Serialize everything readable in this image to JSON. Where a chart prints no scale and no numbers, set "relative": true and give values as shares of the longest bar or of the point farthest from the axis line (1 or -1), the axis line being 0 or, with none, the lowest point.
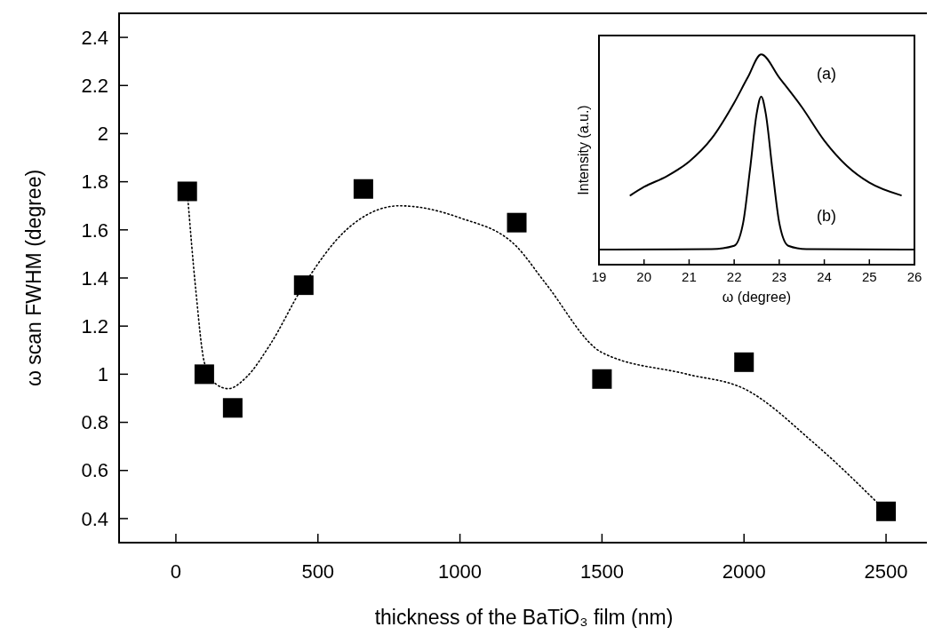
{
  "chart_data": [
    {
      "type": "scatter",
      "xlabel": "thickness of the BaTiO₃ film (nm)",
      "ylabel": "ω scan FWHM  (degree)",
      "xlim": [
        -200,
        2650
      ],
      "xticks": [
        0,
        500,
        1000,
        1500,
        2000,
        2500
      ],
      "ylim": [
        0.3,
        2.5
      ],
      "yticks": [
        0.4,
        0.6,
        0.8,
        1.0,
        1.2,
        1.4,
        1.6,
        1.8,
        2.0,
        2.2,
        2.4
      ],
      "grid": false,
      "series": [
        {
          "color": "#000000",
          "marker": "square",
          "x": [
            40,
            100,
            200,
            450,
            660,
            1200,
            1500,
            2000,
            2500
          ],
          "values": [
            1.76,
            1.0,
            0.86,
            1.37,
            1.77,
            1.63,
            0.98,
            1.05,
            0.43
          ]
        },
        {
          "type": "line",
          "color": "#000000",
          "line_style": "dotted",
          "marker": "none",
          "x": [
            40,
            70,
            100,
            140,
            184,
            250,
            330,
            450,
            600,
            787,
            1000,
            1200,
            1300,
            1500,
            1800,
            2000,
            2250,
            2500
          ],
          "values": [
            1.76,
            1.35,
            1.05,
            0.96,
            0.94,
            0.99,
            1.12,
            1.37,
            1.6,
            1.7,
            1.65,
            1.53,
            1.38,
            1.09,
            1.0,
            0.94,
            0.71,
            0.43
          ]
        }
      ]
    },
    {
      "type": "line",
      "relative": true,
      "xlabel": "ω (degree)",
      "ylabel": "Intensity (a.u.)",
      "xlim": [
        19,
        26
      ],
      "xticks": [
        19,
        20,
        21,
        22,
        23,
        24,
        25,
        26
      ],
      "grid": false,
      "annotations": [
        "(a)",
        "(b)"
      ],
      "series": [
        {
          "color": "#000000",
          "line_style": "solid",
          "x": [
            19.7,
            20,
            20.5,
            21,
            21.5,
            22,
            22.3,
            22.6,
            23,
            23.5,
            24,
            24.5,
            25,
            25.7
          ],
          "values": [
            0.33,
            0.37,
            0.42,
            0.49,
            0.6,
            0.77,
            0.89,
            1.0,
            0.89,
            0.75,
            0.59,
            0.47,
            0.39,
            0.33
          ]
        },
        {
          "color": "#000000",
          "line_style": "solid",
          "x": [
            19,
            21.5,
            22,
            22.2,
            22.35,
            22.5,
            22.6,
            22.7,
            22.85,
            23,
            23.2,
            23.6,
            26
          ],
          "values": [
            0.072,
            0.074,
            0.09,
            0.2,
            0.45,
            0.72,
            0.8,
            0.72,
            0.45,
            0.2,
            0.09,
            0.074,
            0.072
          ]
        }
      ]
    }
  ]
}
